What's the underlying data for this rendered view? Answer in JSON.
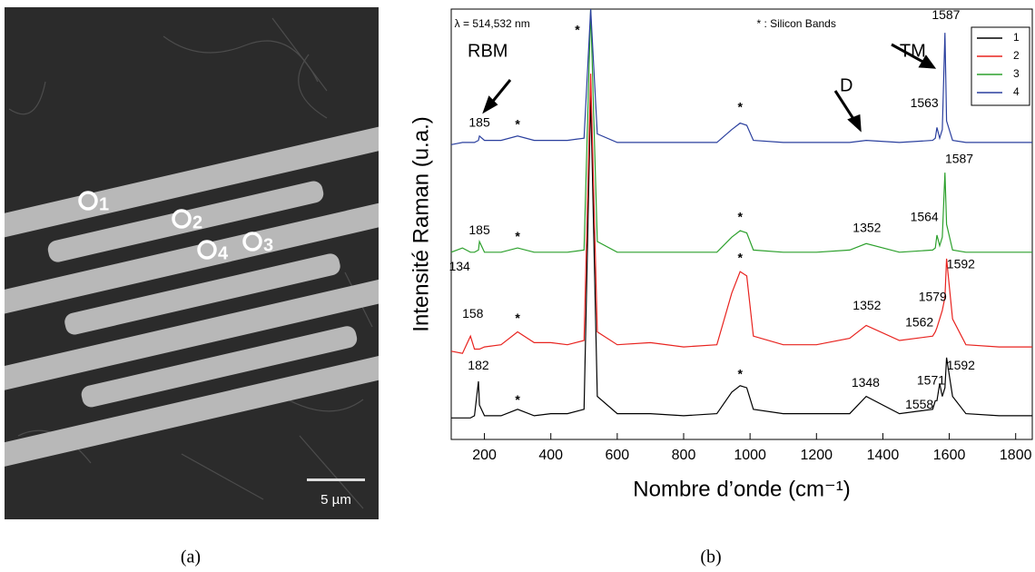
{
  "panel_a": {
    "points": [
      "1",
      "2",
      "3",
      "4"
    ],
    "scale_bar": "5 µm",
    "caption": "(a)"
  },
  "chart_data": {
    "type": "line",
    "caption": "(b)",
    "xlabel": "Nombre d’onde (cm⁻¹)",
    "ylabel": "Intensité Raman (u.a.)",
    "xlim": [
      100,
      1850
    ],
    "xticks": [
      200,
      400,
      600,
      800,
      1000,
      1200,
      1400,
      1600,
      1800
    ],
    "ylim": [
      0,
      100
    ],
    "legend": "upper right",
    "x": [
      100,
      134,
      158,
      170,
      182,
      185,
      200,
      250,
      300,
      350,
      400,
      450,
      500,
      520,
      540,
      600,
      700,
      800,
      900,
      945,
      970,
      990,
      1010,
      1100,
      1200,
      1300,
      1350,
      1450,
      1550,
      1558,
      1563,
      1571,
      1579,
      1587,
      1592,
      1610,
      1650,
      1750,
      1850
    ],
    "series": [
      {
        "name": "1",
        "color": "#000000",
        "values": [
          5,
          5,
          5,
          5.5,
          13.5,
          8,
          5.5,
          5.5,
          7,
          5.5,
          6,
          6,
          7,
          80,
          10,
          6,
          6,
          5.5,
          6,
          11,
          12.5,
          12,
          7,
          6,
          6,
          6,
          10,
          6,
          7,
          9,
          9,
          13,
          10,
          12,
          19,
          10,
          6,
          5.5,
          5.5
        ]
      },
      {
        "name": "2",
        "color": "#e8231f",
        "values": [
          20.5,
          20,
          24,
          21,
          21,
          21,
          21.5,
          22,
          25,
          22.5,
          22.5,
          22,
          23,
          85,
          25,
          22,
          22.5,
          21.5,
          22,
          34,
          39,
          38,
          24,
          22,
          22,
          23.5,
          26.5,
          23,
          24,
          25,
          26,
          28,
          30,
          33,
          42,
          28,
          22,
          21.5,
          21.5
        ]
      },
      {
        "name": "3",
        "color": "#2ca02c",
        "values": [
          43.5,
          44.5,
          43.5,
          43.5,
          44,
          46,
          43.5,
          43.5,
          44.5,
          43.5,
          43.5,
          43.5,
          44,
          100,
          46,
          43.5,
          43.5,
          43.5,
          43.5,
          47,
          48.5,
          48,
          44,
          43.5,
          43.5,
          44,
          45.5,
          43.5,
          44,
          44.5,
          47.5,
          45,
          47,
          62,
          50,
          44,
          43.5,
          43.5,
          43.5
        ]
      },
      {
        "name": "4",
        "color": "#2a3f9e",
        "values": [
          68.5,
          69,
          69,
          69,
          69.5,
          70.5,
          69.5,
          69.5,
          70.5,
          69.5,
          69.5,
          69.5,
          70,
          100,
          71,
          69,
          69,
          69,
          69,
          72,
          73.5,
          73,
          69.5,
          69,
          69,
          69,
          69.5,
          69,
          69.5,
          70,
          72.5,
          70,
          72,
          94.5,
          74,
          69.5,
          69,
          69,
          69
        ]
      }
    ],
    "annotations": [
      {
        "text": "λ = 514,532 nm",
        "x": 110,
        "y": 96.5
      },
      {
        "text": "* : Silicon Bands",
        "x": 1020,
        "y": 96.5
      },
      {
        "text": "RBM",
        "x": 210,
        "y": 90
      },
      {
        "text": "D",
        "x": 1290,
        "y": 82
      },
      {
        "text": "TM",
        "x": 1490,
        "y": 90
      },
      {
        "text": "*",
        "x": 480,
        "y": 95
      },
      {
        "text": "185",
        "x": 185,
        "y": 73.5
      },
      {
        "text": "*",
        "x": 300,
        "y": 73
      },
      {
        "text": "*",
        "x": 970,
        "y": 77
      },
      {
        "text": "1563",
        "x": 1525,
        "y": 78
      },
      {
        "text": "1587",
        "x": 1590,
        "y": 98.5
      },
      {
        "text": "185",
        "x": 185,
        "y": 48.5
      },
      {
        "text": "134",
        "x": 125,
        "y": 40
      },
      {
        "text": "*",
        "x": 300,
        "y": 47
      },
      {
        "text": "*",
        "x": 970,
        "y": 51.5
      },
      {
        "text": "1352",
        "x": 1352,
        "y": 49
      },
      {
        "text": "1564",
        "x": 1525,
        "y": 51.5
      },
      {
        "text": "1587",
        "x": 1630,
        "y": 65
      },
      {
        "text": "158",
        "x": 165,
        "y": 29
      },
      {
        "text": "*",
        "x": 300,
        "y": 28
      },
      {
        "text": "*",
        "x": 970,
        "y": 42
      },
      {
        "text": "1352",
        "x": 1352,
        "y": 31
      },
      {
        "text": "1562",
        "x": 1510,
        "y": 27
      },
      {
        "text": "1579",
        "x": 1550,
        "y": 33
      },
      {
        "text": "1592",
        "x": 1635,
        "y": 40.5
      },
      {
        "text": "182",
        "x": 182,
        "y": 17
      },
      {
        "text": "*",
        "x": 300,
        "y": 9
      },
      {
        "text": "*",
        "x": 970,
        "y": 15
      },
      {
        "text": "1348",
        "x": 1348,
        "y": 13
      },
      {
        "text": "1558",
        "x": 1510,
        "y": 8
      },
      {
        "text": "1571",
        "x": 1545,
        "y": 13.5
      },
      {
        "text": "1592",
        "x": 1635,
        "y": 17
      }
    ]
  }
}
